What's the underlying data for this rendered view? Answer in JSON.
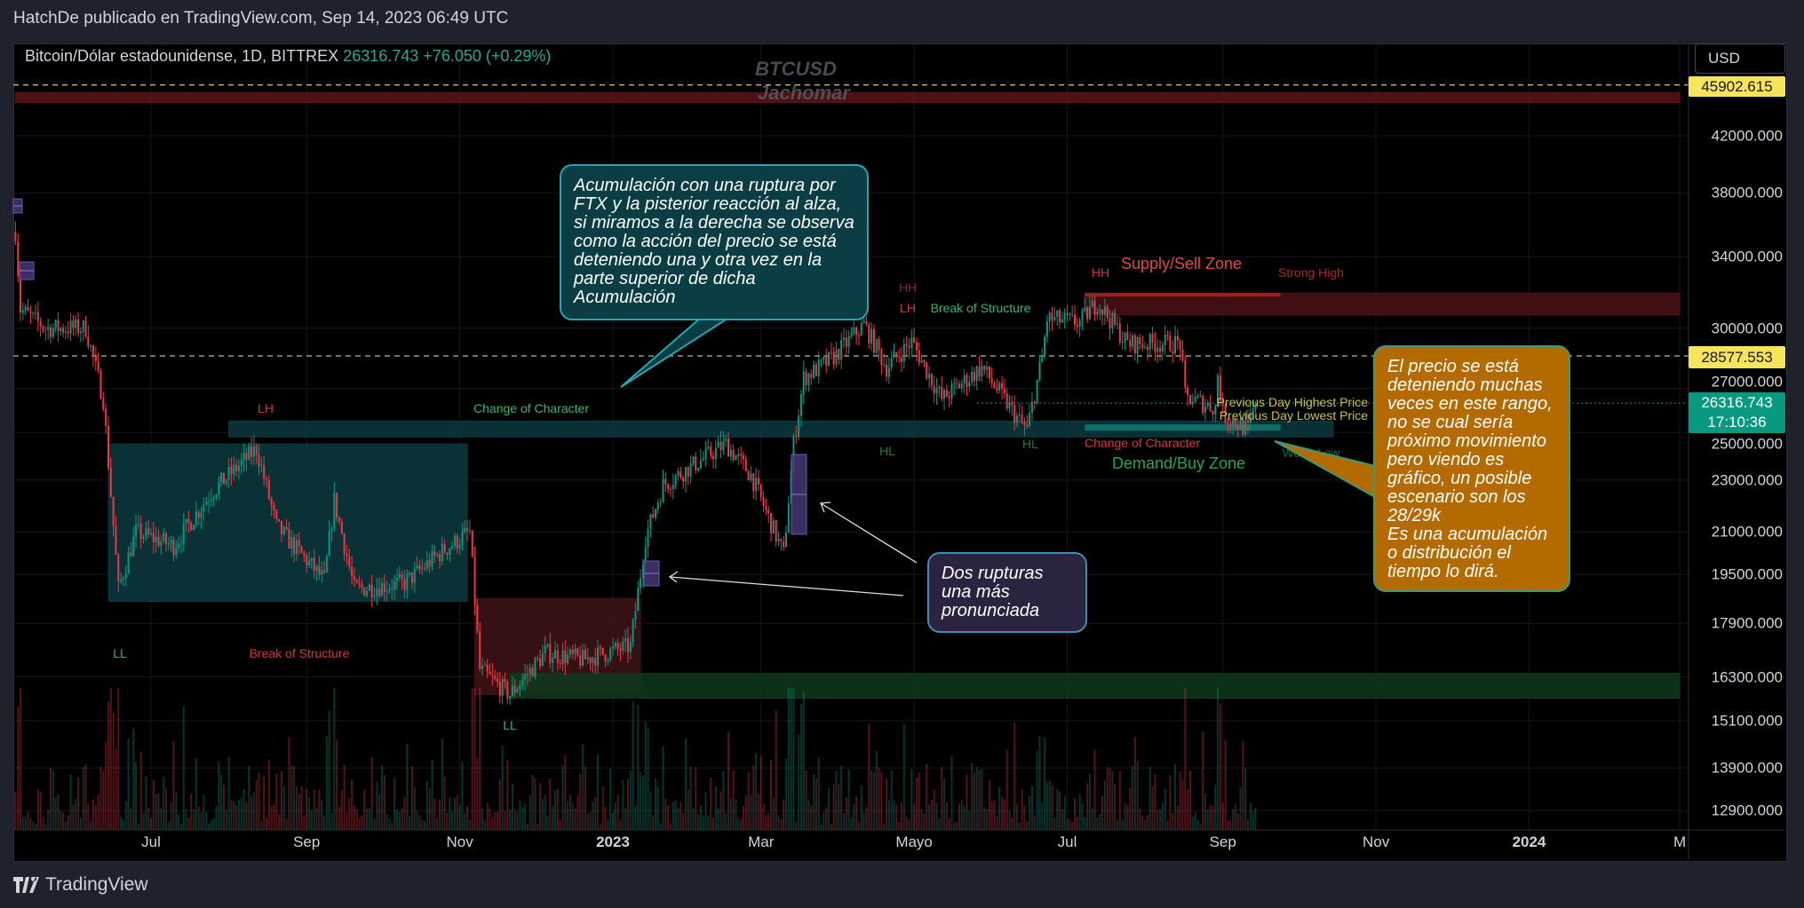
{
  "header": {
    "published": "HatchDe publicado en TradingView.com, Sep 14, 2023 06:49 UTC"
  },
  "legend": {
    "symbol": "Bitcoin/Dólar estadounidense, 1D, BITTREX",
    "price": "26316.743",
    "change": "+76.050 (+0.29%)"
  },
  "watermark": {
    "line1": "BTCUSD",
    "line2": "Jachomar"
  },
  "currency_button": "USD",
  "footer": {
    "logo_text": "TradingView"
  },
  "colors": {
    "up": "#089981",
    "down": "#f23645",
    "background": "#000000",
    "accent_teal": "#26a69a",
    "callout_orange": "#b36b00"
  },
  "chart_data": {
    "type": "candlestick",
    "scale": "log",
    "grid": true,
    "price_axis_ticks": [
      "42000.000",
      "38000.000",
      "34000.000",
      "30000.000",
      "27000.000",
      "25000.000",
      "23000.000",
      "21000.000",
      "19500.000",
      "17900.000",
      "16300.000",
      "15100.000",
      "13900.000",
      "12900.000"
    ],
    "price_axis_values": [
      42000,
      38000,
      34000,
      30000,
      27000,
      25000,
      23000,
      21000,
      19500,
      17900,
      16300,
      15100,
      13900,
      12900
    ],
    "time_axis_ticks": [
      {
        "label": "Jul",
        "date": "2022-07-01"
      },
      {
        "label": "Sep",
        "date": "2022-09-01"
      },
      {
        "label": "Nov",
        "date": "2022-11-01"
      },
      {
        "label": "2023",
        "date": "2023-01-01"
      },
      {
        "label": "Mar",
        "date": "2023-03-01"
      },
      {
        "label": "Mayo",
        "date": "2023-05-01"
      },
      {
        "label": "Jul",
        "date": "2023-07-01"
      },
      {
        "label": "Sep",
        "date": "2023-09-01"
      },
      {
        "label": "Nov",
        "date": "2023-11-01"
      },
      {
        "label": "2024",
        "date": "2024-01-01"
      },
      {
        "label": "M",
        "date": "2024-03-01"
      }
    ],
    "price_path": [
      [
        "2022-05-08",
        35500
      ],
      [
        "2022-05-10",
        31000
      ],
      [
        "2022-05-20",
        30000
      ],
      [
        "2022-06-05",
        30000
      ],
      [
        "2022-06-12",
        26500
      ],
      [
        "2022-06-18",
        19000
      ],
      [
        "2022-06-25",
        21000
      ],
      [
        "2022-07-10",
        20500
      ],
      [
        "2022-07-25",
        22500
      ],
      [
        "2022-08-12",
        24300
      ],
      [
        "2022-08-20",
        21200
      ],
      [
        "2022-09-08",
        19300
      ],
      [
        "2022-09-12",
        22200
      ],
      [
        "2022-09-20",
        19000
      ],
      [
        "2022-10-10",
        19200
      ],
      [
        "2022-10-25",
        20300
      ],
      [
        "2022-11-05",
        21000
      ],
      [
        "2022-11-09",
        16500
      ],
      [
        "2022-11-21",
        15800
      ],
      [
        "2022-12-05",
        17000
      ],
      [
        "2022-12-20",
        16800
      ],
      [
        "2023-01-08",
        17200
      ],
      [
        "2023-01-14",
        20800
      ],
      [
        "2023-01-21",
        22800
      ],
      [
        "2023-02-15",
        24500
      ],
      [
        "2023-02-25",
        23200
      ],
      [
        "2023-03-10",
        20200
      ],
      [
        "2023-03-14",
        24500
      ],
      [
        "2023-03-18",
        27500
      ],
      [
        "2023-03-29",
        28400
      ],
      [
        "2023-04-11",
        30200
      ],
      [
        "2023-04-20",
        28000
      ],
      [
        "2023-04-30",
        29300
      ],
      [
        "2023-05-12",
        26500
      ],
      [
        "2023-05-28",
        28000
      ],
      [
        "2023-06-10",
        25800
      ],
      [
        "2023-06-15",
        25100
      ],
      [
        "2023-06-21",
        28500
      ],
      [
        "2023-06-23",
        30500
      ],
      [
        "2023-07-06",
        30300
      ],
      [
        "2023-07-13",
        31400
      ],
      [
        "2023-07-25",
        29200
      ],
      [
        "2023-08-15",
        29200
      ],
      [
        "2023-08-17",
        26600
      ],
      [
        "2023-08-29",
        26100
      ],
      [
        "2023-08-30",
        27700
      ],
      [
        "2023-09-01",
        25800
      ],
      [
        "2023-09-11",
        25100
      ],
      [
        "2023-09-14",
        26316.743
      ]
    ],
    "horizontal_lines": [
      {
        "price": 45902.615,
        "label": "45902.615",
        "color": "#f7e45a"
      },
      {
        "price": 28577.553,
        "label": "28577.553",
        "color": "#f7e45a"
      }
    ],
    "last_price": {
      "label": "26316.743",
      "countdown": "17:10:36",
      "color": "#089981"
    },
    "zones": [
      {
        "name": "top-resistance",
        "from": "2022-05-08",
        "to": "2024-03-01",
        "top": 45300,
        "bottom": 44500,
        "color": "#5a1518"
      },
      {
        "name": "supply",
        "from": "2023-07-08",
        "to": "2024-03-01",
        "top": 31900,
        "bottom": 30700,
        "color": "#4a1216"
      },
      {
        "name": "change-of-character",
        "from": "2022-08-01",
        "to": "2023-10-15",
        "top": 25500,
        "bottom": 24800,
        "color": "#0b3a3e"
      },
      {
        "name": "accumulation",
        "from": "2022-06-14",
        "to": "2022-11-04",
        "top": 24500,
        "bottom": 18600,
        "color": "#0c3a3e"
      },
      {
        "name": "ftx-range",
        "from": "2022-11-07",
        "to": "2023-01-12",
        "top": 18700,
        "bottom": 15800,
        "color": "#3f1416"
      },
      {
        "name": "demand",
        "from": "2022-11-21",
        "to": "2024-03-01",
        "top": 16400,
        "bottom": 15700,
        "color": "#0e3a1c"
      }
    ],
    "annotations": {
      "lh1": "LH",
      "choch1": "Change of Character",
      "ll1": "LL",
      "bos1": "Break of Structure",
      "ll2": "LL",
      "hh1": "HH",
      "lh2": "LH",
      "bos2": "Break of Structure",
      "hl1": "HL",
      "hl2": "HL",
      "hh2": "HH",
      "supply": "Supply/Sell Zone",
      "strong_high": "Strong High",
      "choch2": "Change of Character",
      "demand": "Demand/Buy Zone",
      "weak_low": "Weak Low",
      "prev_high": "Previous Day Highest Price",
      "prev_low": "Previous Day Lowest Price"
    },
    "callouts": {
      "teal": "Acumulación con una ruptura por\nFTX y la pisterior reacción al alza,\nsi miramos a la derecha se observa\ncomo la acción del precio se está\ndeteniendo una y otra vez en la\nparte superior de dicha\nAcumulación",
      "purple": "Dos rupturas\nuna más\npronunciada",
      "orange": "El precio se está\ndeteniendo muchas\nveces en este rango,\nno se cual sería\npróximo movimiento\npero viendo es\ngráfico, un posible\nescenario son los\n28/29k\nEs una acumulación\no distribución el\ntiempo lo dirá."
    }
  }
}
